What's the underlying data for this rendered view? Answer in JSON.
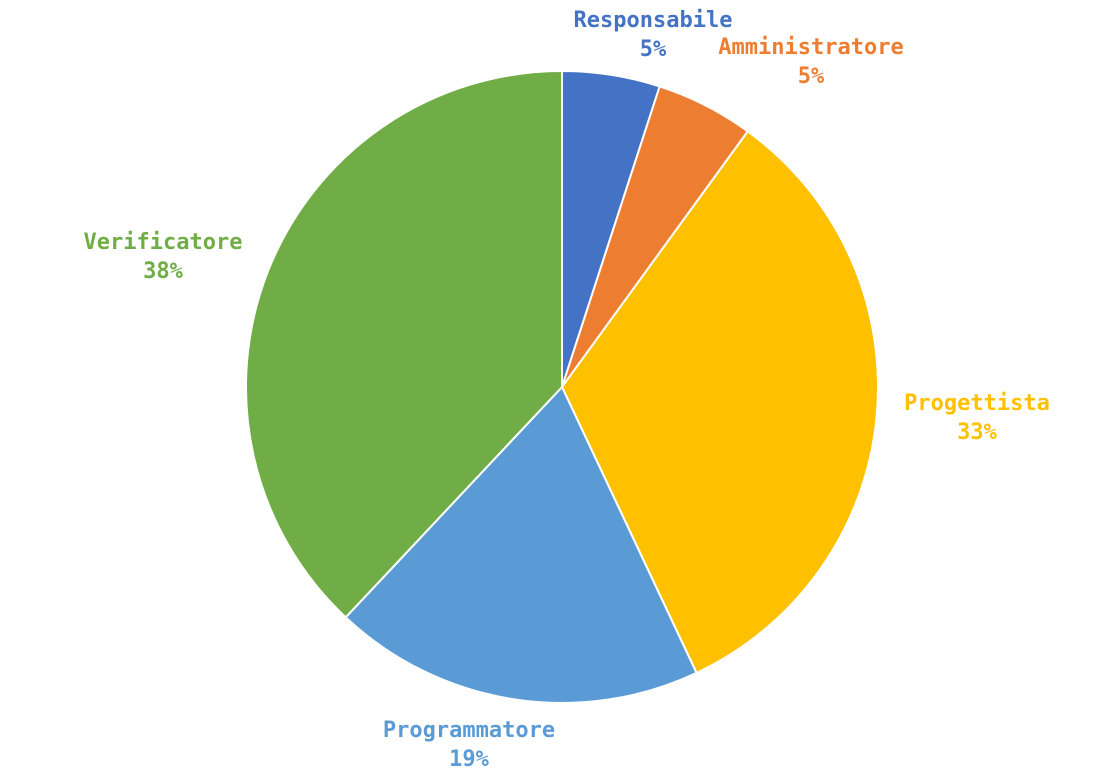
{
  "chart_data": {
    "type": "pie",
    "slices": [
      {
        "label": "Responsabile",
        "value": 5,
        "display": "5%",
        "color": "#4472C4"
      },
      {
        "label": "Amministratore",
        "value": 5,
        "display": "5%",
        "color": "#ED7D31"
      },
      {
        "label": "Progettista",
        "value": 33,
        "display": "33%",
        "color": "#FFC000"
      },
      {
        "label": "Programmatore",
        "value": 19,
        "display": "19%",
        "color": "#5B9BD5"
      },
      {
        "label": "Verificatore",
        "value": 38,
        "display": "38%",
        "color": "#70AD47"
      }
    ],
    "start_angle": "12 o'clock",
    "direction": "clockwise",
    "legend": "none",
    "data_labels": "outside"
  }
}
